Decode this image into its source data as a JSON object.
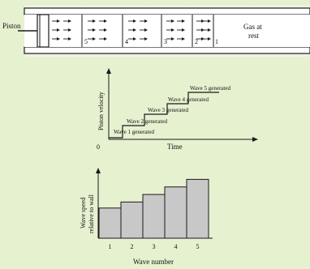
{
  "tube": {
    "piston_label": "Piston",
    "gas_label_line1": "Gas at",
    "gas_label_line2": "rest",
    "region_numbers": [
      "5",
      "4",
      "3",
      "2",
      "1"
    ]
  },
  "velocity_plot": {
    "y_axis_label": "Piston velocity",
    "x_axis_label": "Time",
    "origin_label": "0",
    "steps": [
      "Wave 1 generated",
      "Wave 2 generated",
      "Wave 3 generated",
      "Wave 4 generated",
      "Wave 5 generated"
    ]
  },
  "chart_data": {
    "type": "bar",
    "categories": [
      "1",
      "2",
      "3",
      "4",
      "5"
    ],
    "values": [
      1.0,
      1.2,
      1.45,
      1.7,
      1.95
    ],
    "xlabel": "Wave number",
    "ylabel_line1": "Wave speed",
    "ylabel_line2": "relative to wall",
    "bar_color": "#c8c8c8"
  },
  "colors": {
    "background": "#e6f1cf",
    "tube_fill": "#ffffff",
    "stroke": "#1a1a1a"
  }
}
